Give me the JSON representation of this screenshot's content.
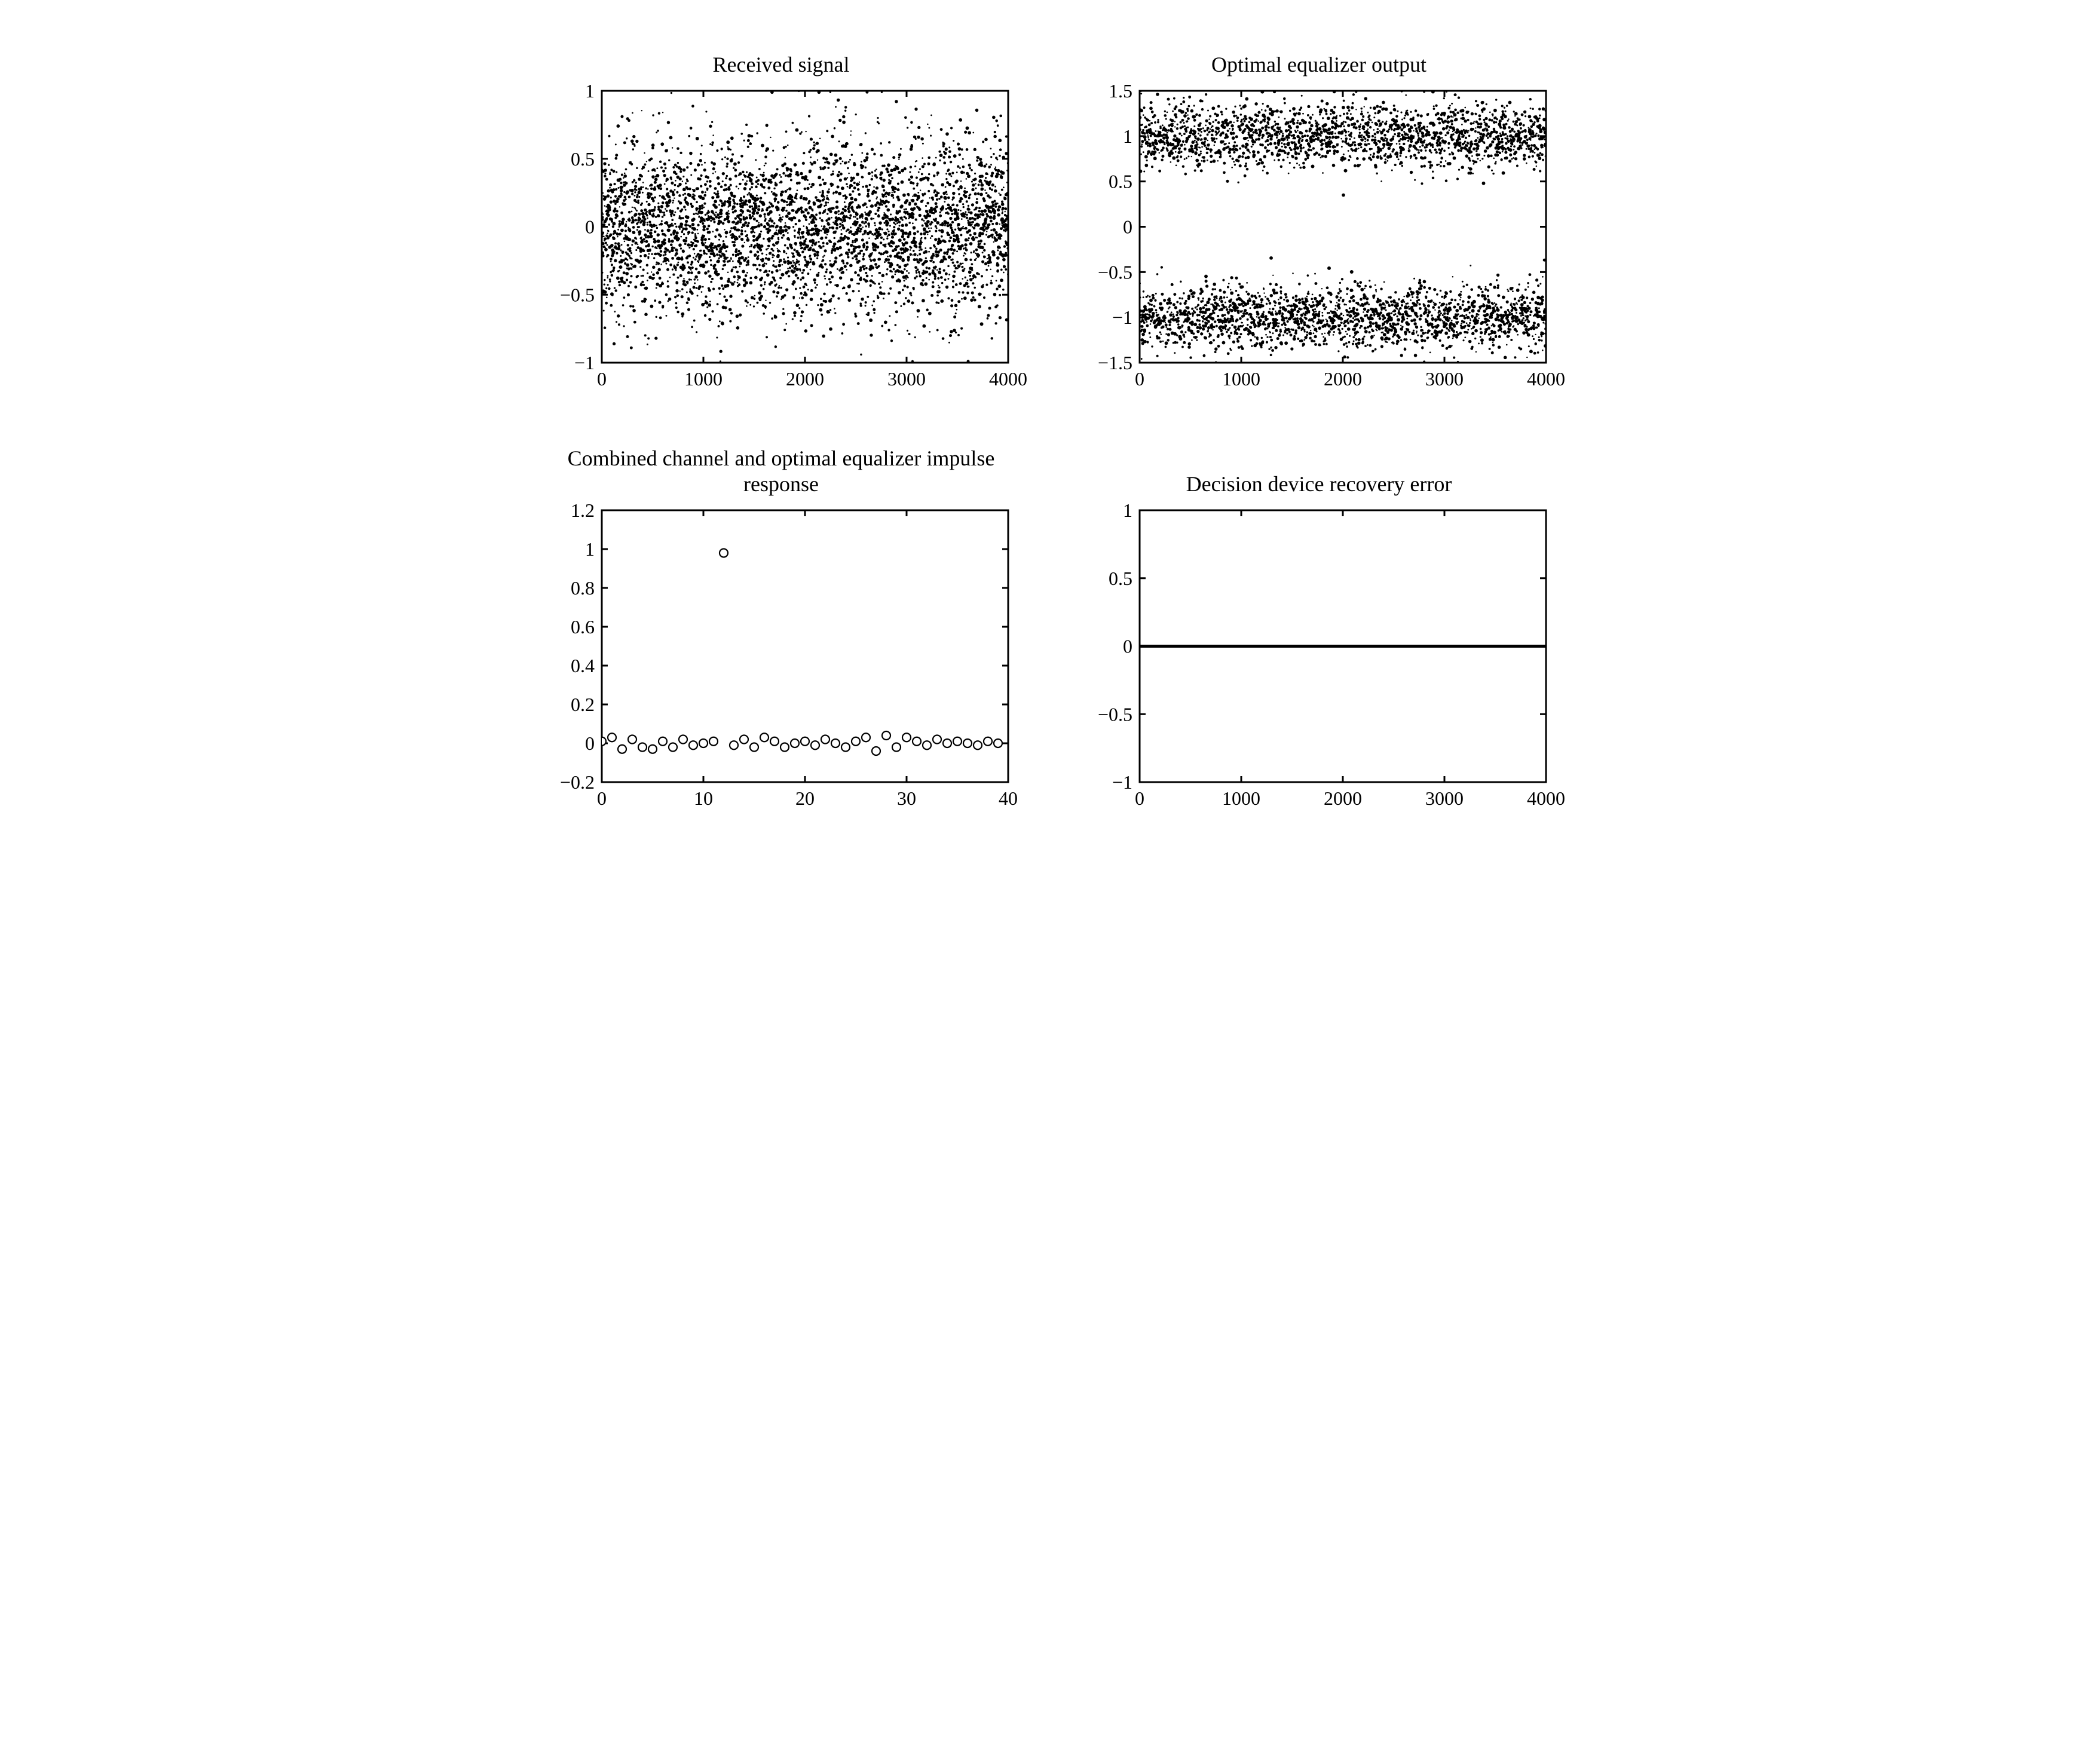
{
  "global": {
    "font_family": "Times New Roman, Times, serif",
    "title_fontsize": 36,
    "tick_fontsize": 32,
    "axis_stroke": "#000000",
    "axis_stroke_width": 3,
    "background": "#ffffff"
  },
  "panels": {
    "received": {
      "title": "Received signal",
      "type": "scatter-dense",
      "xlim": [
        0,
        4000
      ],
      "ylim": [
        -1,
        1
      ],
      "xticks": [
        0,
        1000,
        2000,
        3000,
        4000
      ],
      "yticks": [
        -1,
        -0.5,
        0,
        0.5,
        1
      ],
      "yticklabels": [
        "−1",
        "−0.5",
        "0",
        "0.5",
        "1"
      ],
      "n_points": 4000,
      "distribution": "gaussian-centered",
      "sigma": 0.32,
      "point_color": "#000000",
      "point_radius_min": 1.2,
      "point_radius_max": 3.0
    },
    "equalizer_output": {
      "title": "Optimal equalizer output",
      "type": "scatter-bimodal",
      "xlim": [
        0,
        4000
      ],
      "ylim": [
        -1.5,
        1.5
      ],
      "xticks": [
        0,
        1000,
        2000,
        3000,
        4000
      ],
      "yticks": [
        -1.5,
        -1,
        -0.5,
        0,
        0.5,
        1,
        1.5
      ],
      "yticklabels": [
        "−1.5",
        "−1",
        "−0.5",
        "0",
        "0.5",
        "1",
        "1.5"
      ],
      "n_points": 4000,
      "centers": [
        -1,
        1
      ],
      "sigma": 0.18,
      "point_color": "#000000",
      "point_radius_min": 1.2,
      "point_radius_max": 3.0
    },
    "impulse": {
      "title": "Combined channel and optimal equalizer impulse response",
      "type": "stem-circles",
      "xlim": [
        0,
        40
      ],
      "ylim": [
        -0.2,
        1.2
      ],
      "xticks": [
        0,
        10,
        20,
        30,
        40
      ],
      "yticks": [
        -0.2,
        0,
        0.2,
        0.4,
        0.6,
        0.8,
        1,
        1.2
      ],
      "yticklabels": [
        "−0.2",
        "0",
        "0.2",
        "0.4",
        "0.6",
        "0.8",
        "1",
        "1.2"
      ],
      "marker_stroke": "#000000",
      "marker_stroke_width": 2.2,
      "marker_fill": "#ffffff",
      "marker_radius": 7,
      "x": [
        0,
        1,
        2,
        3,
        4,
        5,
        6,
        7,
        8,
        9,
        10,
        11,
        12,
        13,
        14,
        15,
        16,
        17,
        18,
        19,
        20,
        21,
        22,
        23,
        24,
        25,
        26,
        27,
        28,
        29,
        30,
        31,
        32,
        33,
        34,
        35,
        36,
        37,
        38,
        39
      ],
      "y": [
        0.01,
        0.03,
        -0.03,
        0.02,
        -0.02,
        -0.03,
        0.01,
        -0.02,
        0.02,
        -0.01,
        0.0,
        0.01,
        0.98,
        -0.01,
        0.02,
        -0.02,
        0.03,
        0.01,
        -0.02,
        0.0,
        0.01,
        -0.01,
        0.02,
        0.0,
        -0.02,
        0.01,
        0.03,
        -0.04,
        0.04,
        -0.02,
        0.03,
        0.01,
        -0.01,
        0.02,
        0.0,
        0.01,
        0.0,
        -0.01,
        0.01,
        0.0
      ]
    },
    "error": {
      "title": "Decision device recovery error",
      "type": "line",
      "xlim": [
        0,
        4000
      ],
      "ylim": [
        -1,
        1
      ],
      "xticks": [
        0,
        1000,
        2000,
        3000,
        4000
      ],
      "yticks": [
        -1,
        -0.5,
        0,
        0.5,
        1
      ],
      "yticklabels": [
        "−1",
        "−0.5",
        "0",
        "0.5",
        "1"
      ],
      "line_color": "#000000",
      "line_width": 5,
      "x": [
        0,
        4000
      ],
      "y": [
        0,
        0
      ]
    }
  }
}
